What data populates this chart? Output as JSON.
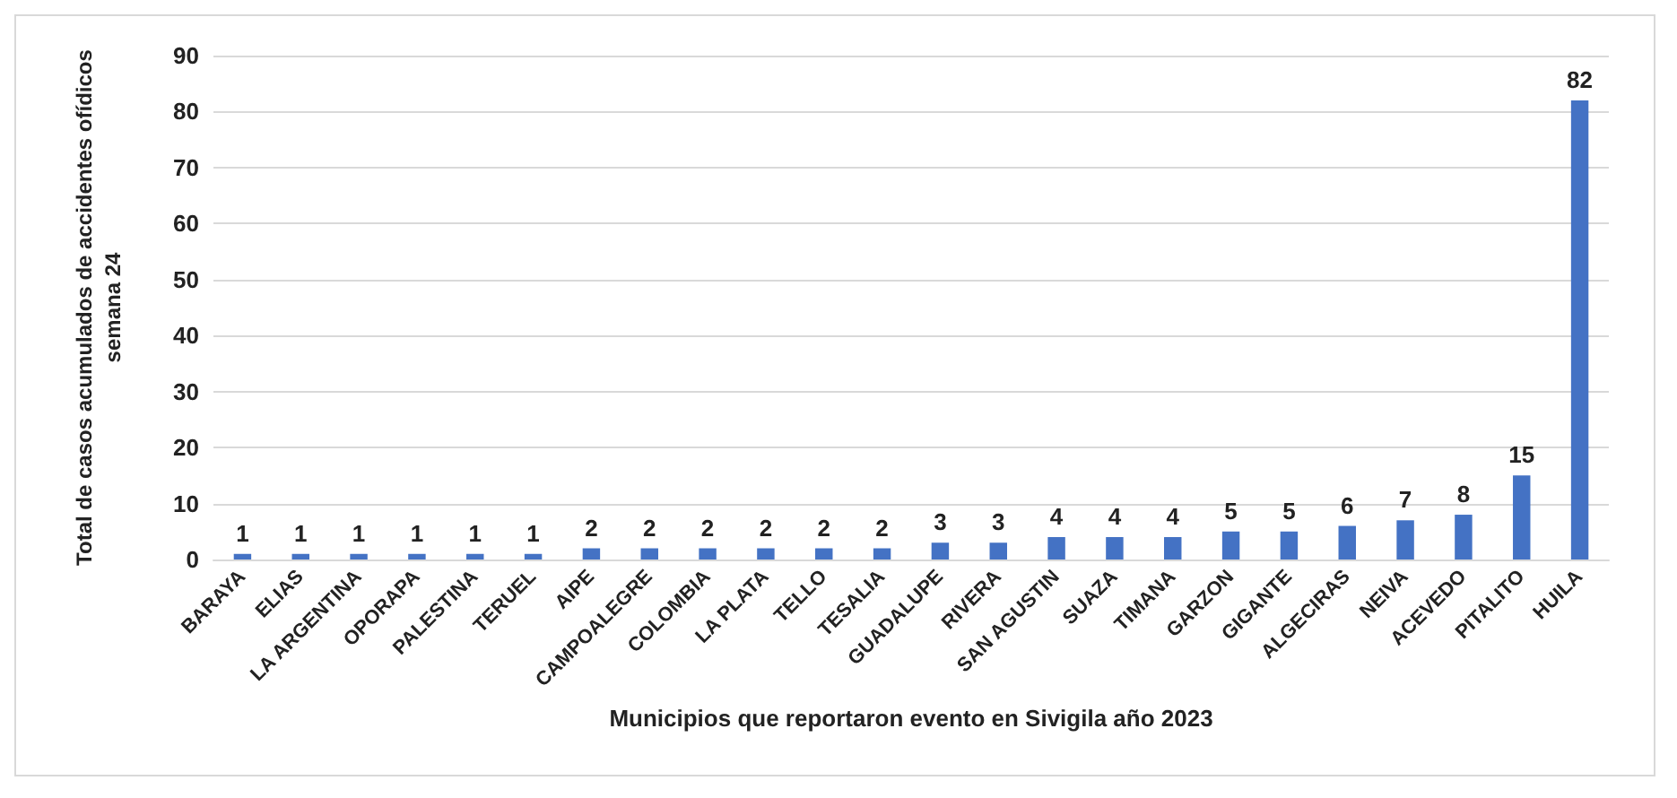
{
  "chart_data": {
    "type": "bar",
    "xlabel": "Municipios que reportaron evento en Sivigila año 2023",
    "ylabel": "Total de casos acumulados de accidentes ofídicos\nsemana 24",
    "categories": [
      "BARAYA",
      "ELIAS",
      "LA ARGENTINA",
      "OPORAPA",
      "PALESTINA",
      "TERUEL",
      "AIPE",
      "CAMPOALEGRE",
      "COLOMBIA",
      "LA PLATA",
      "TELLO",
      "TESALIA",
      "GUADALUPE",
      "RIVERA",
      "SAN AGUSTIN",
      "SUAZA",
      "TIMANA",
      "GARZON",
      "GIGANTE",
      "ALGECIRAS",
      "NEIVA",
      "ACEVEDO",
      "PITALITO",
      "HUILA"
    ],
    "values": [
      1,
      1,
      1,
      1,
      1,
      1,
      2,
      2,
      2,
      2,
      2,
      2,
      3,
      3,
      4,
      4,
      4,
      5,
      5,
      6,
      7,
      8,
      15,
      82
    ],
    "color": "#4472c4",
    "ylim": [
      0,
      90
    ],
    "yticks": [
      0,
      10,
      20,
      30,
      40,
      50,
      60,
      70,
      80,
      90
    ],
    "grid": "y",
    "data_labels": true
  }
}
